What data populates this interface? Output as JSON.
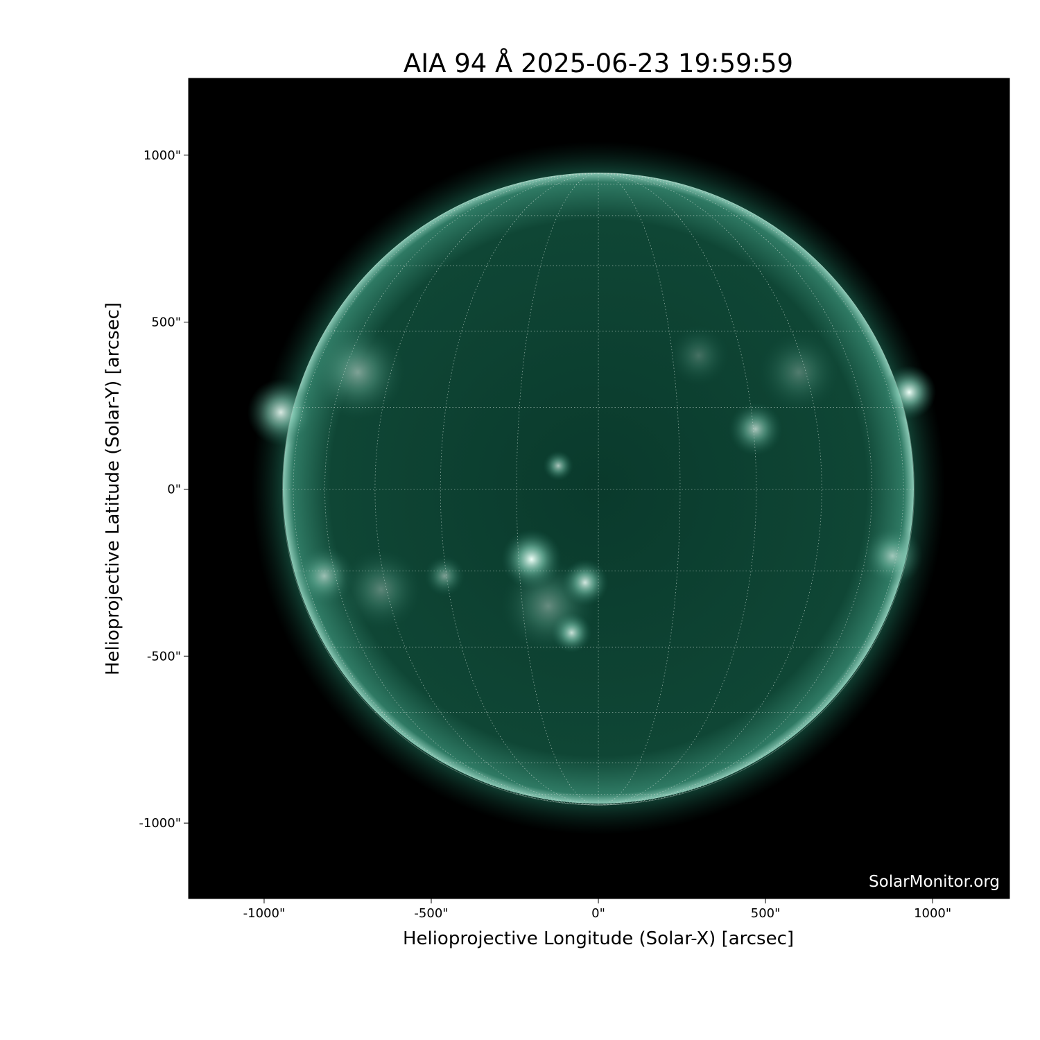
{
  "title": "AIA 94 Å 2025-06-23 19:59:59",
  "watermark": "SolarMonitor.org",
  "colors": {
    "background": "#000000",
    "disk": "#0e4a38",
    "bright": "#e8fff6",
    "grid": "#c8d8d0"
  },
  "chart_data": {
    "type": "heatmap",
    "title": "AIA 94 Å 2025-06-23 19:59:59",
    "xlabel": "Helioprojective Longitude (Solar-X) [arcsec]",
    "ylabel": "Helioprojective Latitude (Solar-Y) [arcsec]",
    "xlim": [
      -1226,
      1230
    ],
    "ylim": [
      -1226,
      1230
    ],
    "x_ticks": [
      -1000,
      -500,
      0,
      500,
      1000
    ],
    "x_tick_labels": [
      "-1000\"",
      "-500\"",
      "0\"",
      "500\"",
      "1000\""
    ],
    "y_ticks": [
      1000,
      500,
      0,
      -500,
      -1000
    ],
    "y_tick_labels": [
      "1000\"",
      "500\"",
      "0\"",
      "-500\"",
      "-1000\""
    ],
    "solar_radius_arcsec": 945,
    "heliographic_grid_deg": 15,
    "colormap": "sdoaia94",
    "grid": true
  }
}
